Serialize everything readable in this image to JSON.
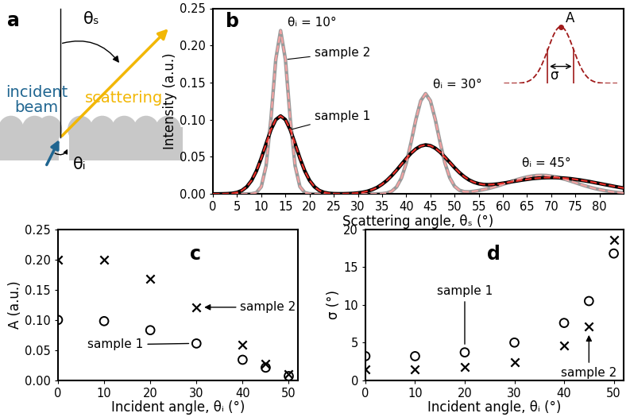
{
  "diagram": {
    "label": "a",
    "texts": {
      "incident": "incident\nbeam",
      "scattering": "scattering",
      "theta_s": "θₛ",
      "theta_i": "θᵢ"
    },
    "inset": {
      "peak": "A",
      "width": "σ"
    }
  },
  "chart_data": [
    {
      "type": "line",
      "title": "b",
      "x": [
        0,
        1,
        2,
        3,
        4,
        5,
        6,
        7,
        8,
        9,
        10,
        11,
        12,
        13,
        14,
        15,
        16,
        17,
        18,
        19,
        20,
        21,
        22,
        23,
        24,
        25,
        26,
        27,
        28,
        29,
        30,
        31,
        32,
        33,
        34,
        35,
        36,
        37,
        38,
        39,
        40,
        41,
        42,
        43,
        44,
        45,
        46,
        47,
        48,
        49,
        50,
        51,
        52,
        53,
        54,
        55,
        56,
        57,
        58,
        59,
        60,
        61,
        62,
        63,
        64,
        65,
        66,
        67,
        68,
        69,
        70,
        71,
        72,
        73,
        74,
        75,
        76,
        77,
        78,
        79,
        80,
        81,
        82,
        83,
        84,
        85
      ],
      "xlim": [
        0,
        85
      ],
      "xticks": [
        0,
        5,
        10,
        15,
        20,
        25,
        30,
        35,
        40,
        45,
        50,
        55,
        60,
        65,
        70,
        75,
        80
      ],
      "ylim": [
        0,
        0.25
      ],
      "yticks": [
        {
          "value": 0,
          "label": "0.00"
        },
        {
          "value": 0.05,
          "label": "0.05"
        },
        {
          "value": 0.1,
          "label": "0.10"
        },
        {
          "value": 0.15,
          "label": "0.15"
        },
        {
          "value": 0.2,
          "label": "0.20"
        },
        {
          "value": 0.25,
          "label": "0.25"
        }
      ],
      "x_label": "Scattering angle, θₛ (°)",
      "y_label": "Intensity (a.u.)",
      "series": [
        {
          "name": "sample 2",
          "color": "#9a9a9a",
          "line_style": "solid",
          "values": [
            0,
            0,
            0,
            0,
            0,
            0,
            0,
            0,
            0.0002,
            0.0017,
            0.0097,
            0.0379,
            0.1007,
            0.181,
            0.22,
            0.181,
            0.1007,
            0.0379,
            0.0097,
            0.0017,
            0.0002,
            0,
            0,
            0,
            0,
            0,
            0,
            0,
            0,
            0,
            0,
            0,
            0,
            0,
            0.0001,
            0.0003,
            0.0012,
            0.0036,
            0.0094,
            0.0212,
            0.0414,
            0.0694,
            0.1004,
            0.1254,
            0.1351,
            0.1255,
            0.1006,
            0.0697,
            0.0418,
            0.0218,
            0.0103,
            0.0049,
            0.003,
            0.0028,
            0.0035,
            0.0045,
            0.0058,
            0.0073,
            0.009,
            0.0109,
            0.013,
            0.0152,
            0.0173,
            0.0194,
            0.0212,
            0.0228,
            0.024,
            0.0248,
            0.025,
            0.0248,
            0.024,
            0.0228,
            0.0212,
            0.0194,
            0.0173,
            0.0152,
            0.013,
            0.0109,
            0.009,
            0.0073,
            0.0058,
            0.0045,
            0.0034,
            0.0025,
            0.0018,
            0.0013
          ]
        },
        {
          "name": "sample 1",
          "color": "#000000",
          "line_style": "solid",
          "values": [
            0,
            0,
            0.0001,
            0.0003,
            0.0008,
            0.002,
            0.0046,
            0.0096,
            0.0181,
            0.031,
            0.0481,
            0.0676,
            0.0864,
            0.1,
            0.105,
            0.1,
            0.0864,
            0.0676,
            0.0481,
            0.031,
            0.0181,
            0.0096,
            0.0046,
            0.002,
            0.0008,
            0.0003,
            0.0002,
            0.0002,
            0.0004,
            0.0007,
            0.0013,
            0.0022,
            0.0036,
            0.0058,
            0.0088,
            0.013,
            0.0182,
            0.0246,
            0.0319,
            0.0398,
            0.0476,
            0.0548,
            0.0606,
            0.0645,
            0.066,
            0.065,
            0.0616,
            0.0563,
            0.0496,
            0.0425,
            0.0353,
            0.0287,
            0.0232,
            0.0188,
            0.0157,
            0.0137,
            0.0126,
            0.0124,
            0.0128,
            0.0134,
            0.0144,
            0.0154,
            0.0166,
            0.0176,
            0.0187,
            0.0196,
            0.0205,
            0.0211,
            0.0216,
            0.0219,
            0.022,
            0.0219,
            0.0216,
            0.0211,
            0.0205,
            0.0196,
            0.0187,
            0.0176,
            0.0165,
            0.0152,
            0.014,
            0.0127,
            0.0115,
            0.0102,
            0.009,
            0.0079
          ]
        },
        {
          "name": "sample 2",
          "color": "#f4a3a3",
          "line_style": "dashed",
          "values": [
            0,
            0,
            0,
            0,
            0,
            0,
            0,
            0,
            0.0002,
            0.0017,
            0.0097,
            0.0379,
            0.1007,
            0.181,
            0.22,
            0.181,
            0.1007,
            0.0379,
            0.0097,
            0.0017,
            0.0002,
            0,
            0,
            0,
            0,
            0,
            0,
            0,
            0,
            0,
            0,
            0,
            0,
            0,
            0.0001,
            0.0003,
            0.0012,
            0.0036,
            0.0094,
            0.0212,
            0.0414,
            0.0694,
            0.1004,
            0.1254,
            0.1351,
            0.1255,
            0.1006,
            0.0697,
            0.0418,
            0.0218,
            0.0103,
            0.0049,
            0.003,
            0.0028,
            0.0035,
            0.0045,
            0.0058,
            0.0073,
            0.009,
            0.0109,
            0.013,
            0.0152,
            0.0173,
            0.0194,
            0.0212,
            0.0228,
            0.024,
            0.0248,
            0.025,
            0.0248,
            0.024,
            0.0228,
            0.0212,
            0.0194,
            0.0173,
            0.0152,
            0.013,
            0.0109,
            0.009,
            0.0073,
            0.0058,
            0.0045,
            0.0034,
            0.0025,
            0.0018,
            0.0013
          ]
        },
        {
          "name": "sample 1",
          "color": "#e8302a",
          "line_style": "dashed",
          "values": [
            0,
            0,
            0.0001,
            0.0003,
            0.0008,
            0.002,
            0.0046,
            0.0096,
            0.0181,
            0.031,
            0.0481,
            0.0676,
            0.0864,
            0.1,
            0.105,
            0.1,
            0.0864,
            0.0676,
            0.0481,
            0.031,
            0.0181,
            0.0096,
            0.0046,
            0.002,
            0.0008,
            0.0003,
            0.0002,
            0.0002,
            0.0004,
            0.0007,
            0.0013,
            0.0022,
            0.0036,
            0.0058,
            0.0088,
            0.013,
            0.0182,
            0.0246,
            0.0319,
            0.0398,
            0.0476,
            0.0548,
            0.0606,
            0.0645,
            0.066,
            0.065,
            0.0616,
            0.0563,
            0.0496,
            0.0425,
            0.0353,
            0.0287,
            0.0232,
            0.0188,
            0.0157,
            0.0137,
            0.0126,
            0.0124,
            0.0128,
            0.0134,
            0.0144,
            0.0154,
            0.0166,
            0.0176,
            0.0187,
            0.0196,
            0.0205,
            0.0211,
            0.0216,
            0.0219,
            0.022,
            0.0219,
            0.0216,
            0.0211,
            0.0205,
            0.0196,
            0.0187,
            0.0176,
            0.0165,
            0.0152,
            0.014,
            0.0127,
            0.0115,
            0.0102,
            0.009,
            0.0079
          ]
        }
      ],
      "annotations": [
        "θᵢ = 10°",
        "θᵢ = 30°",
        "θᵢ = 45°",
        "sample 2",
        "sample 1"
      ]
    },
    {
      "type": "scatter",
      "title": "c",
      "x": [
        0,
        10,
        20,
        30,
        40,
        45,
        50
      ],
      "xlim": [
        0,
        52
      ],
      "xticks": [
        0,
        10,
        20,
        30,
        40,
        50
      ],
      "ylim": [
        0,
        0.25
      ],
      "yticks": [
        {
          "value": 0,
          "label": "0.00"
        },
        {
          "value": 0.05,
          "label": "0.05"
        },
        {
          "value": 0.1,
          "label": "0.10"
        },
        {
          "value": 0.15,
          "label": "0.15"
        },
        {
          "value": 0.2,
          "label": "0.20"
        },
        {
          "value": 0.25,
          "label": "0.25"
        }
      ],
      "x_label": "Incident angle, θᵢ (°)",
      "y_label": "A (a.u.)",
      "series": [
        {
          "name": "sample 1",
          "color": "#000000",
          "marker": "circle",
          "values": [
            0.1,
            0.098,
            0.083,
            0.061,
            0.034,
            0.021,
            0.007
          ]
        },
        {
          "name": "sample 2",
          "color": "#000000",
          "marker": "x",
          "values": [
            0.2,
            0.2,
            0.168,
            0.121,
            0.059,
            0.027,
            0.01
          ]
        }
      ],
      "annotations": [
        "sample 2",
        "sample 1"
      ]
    },
    {
      "type": "scatter",
      "title": "d",
      "x": [
        0,
        10,
        20,
        30,
        40,
        45,
        50
      ],
      "xlim": [
        0,
        52
      ],
      "xticks": [
        0,
        10,
        20,
        30,
        40,
        50
      ],
      "ylim": [
        0,
        20
      ],
      "yticks": [
        0,
        5,
        10,
        15,
        20
      ],
      "x_label": "Incident angle, θᵢ (°)",
      "y_label": "σ (°)",
      "series": [
        {
          "name": "sample 1",
          "color": "#000000",
          "marker": "circle",
          "values": [
            3.2,
            3.2,
            3.7,
            5.0,
            7.6,
            10.5,
            16.8
          ]
        },
        {
          "name": "sample 2",
          "color": "#000000",
          "marker": "x",
          "values": [
            1.5,
            1.5,
            1.8,
            2.4,
            4.6,
            7.1,
            18.6
          ]
        }
      ],
      "annotations": [
        "sample 1",
        "sample 2"
      ]
    }
  ]
}
